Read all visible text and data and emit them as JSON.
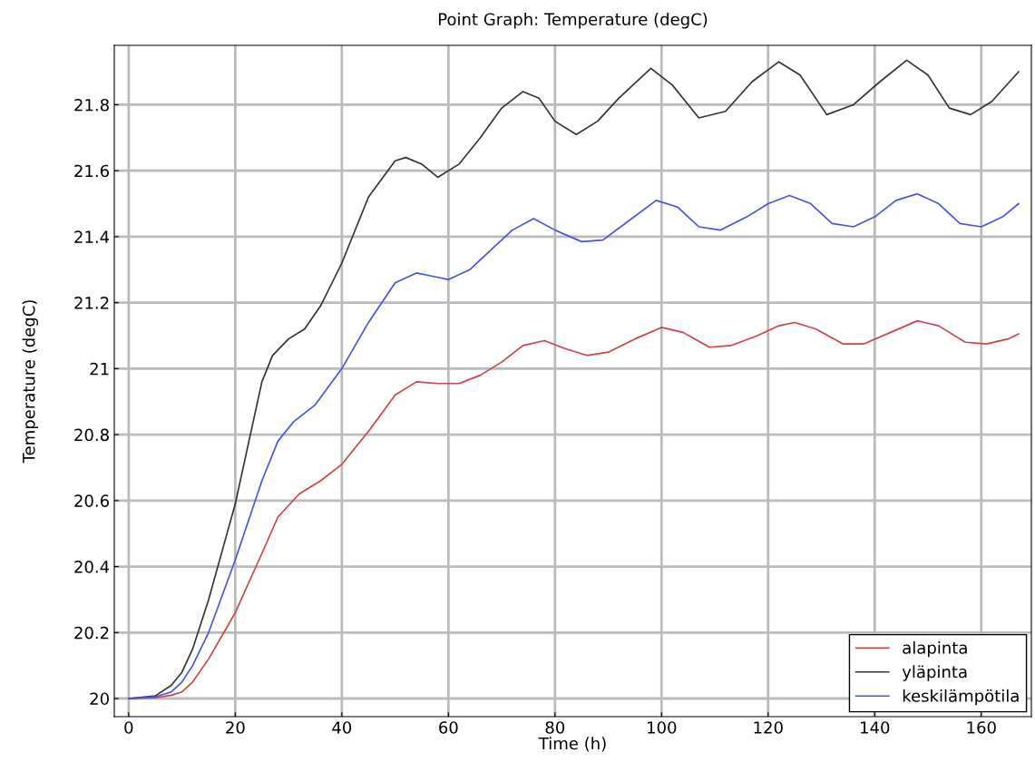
{
  "chart_data": {
    "type": "line",
    "title": "Point Graph: Temperature (degC)",
    "xlabel": "Time (h)",
    "ylabel": "Temperature (degC)",
    "xlim": [
      -2.7,
      169.4
    ],
    "ylim": [
      19.945,
      21.98
    ],
    "xticks": [
      0,
      20,
      40,
      60,
      80,
      100,
      120,
      140,
      160
    ],
    "yticks": [
      20,
      20.2,
      20.4,
      20.6,
      20.8,
      21,
      21.2,
      21.4,
      21.6,
      21.8
    ],
    "grid": true,
    "legend": "bottom right",
    "marker": "none",
    "line_style": "solid",
    "series": [
      {
        "name": "alapinta",
        "color": "#cc4444",
        "x": [
          0,
          5,
          8,
          10,
          12,
          15,
          20,
          25,
          28,
          32,
          36,
          40,
          45,
          50,
          54,
          58,
          62,
          66,
          70,
          74,
          78,
          82,
          86,
          90,
          95,
          100,
          104,
          109,
          113,
          118,
          122,
          125,
          129,
          134,
          138,
          143,
          148,
          152,
          157,
          161,
          165,
          167
        ],
        "values": [
          20,
          20.002,
          20.01,
          20.02,
          20.05,
          20.12,
          20.26,
          20.44,
          20.55,
          20.62,
          20.66,
          20.71,
          20.81,
          20.92,
          20.96,
          20.955,
          20.955,
          20.98,
          21.02,
          21.07,
          21.085,
          21.06,
          21.04,
          21.05,
          21.09,
          21.125,
          21.11,
          21.065,
          21.07,
          21.1,
          21.13,
          21.14,
          21.12,
          21.075,
          21.075,
          21.11,
          21.145,
          21.13,
          21.08,
          21.075,
          21.09,
          21.105
        ]
      },
      {
        "name": "yläpinta",
        "color": "#333333",
        "x": [
          0,
          5,
          8,
          10,
          12,
          15,
          20,
          25,
          27,
          30,
          33,
          36,
          40,
          45,
          50,
          52,
          55,
          58,
          62,
          66,
          70,
          74,
          77,
          80,
          84,
          88,
          92,
          98,
          102,
          107,
          112,
          117,
          122,
          126,
          131,
          136,
          141,
          146,
          150,
          154,
          158,
          162,
          167
        ],
        "values": [
          20,
          20.008,
          20.04,
          20.08,
          20.15,
          20.3,
          20.59,
          20.96,
          21.04,
          21.09,
          21.12,
          21.19,
          21.32,
          21.52,
          21.63,
          21.64,
          21.62,
          21.58,
          21.62,
          21.7,
          21.79,
          21.84,
          21.82,
          21.75,
          21.71,
          21.75,
          21.82,
          21.91,
          21.86,
          21.76,
          21.78,
          21.87,
          21.93,
          21.89,
          21.77,
          21.8,
          21.87,
          21.935,
          21.89,
          21.79,
          21.77,
          21.81,
          21.9
        ]
      },
      {
        "name": "keskilämpötila",
        "color": "#4455dd",
        "x": [
          0,
          5,
          8,
          10,
          12,
          15,
          20,
          25,
          28,
          31,
          35,
          40,
          45,
          50,
          54,
          57,
          60,
          64,
          68,
          72,
          76,
          80,
          85,
          89,
          94,
          99,
          103,
          107,
          111,
          116,
          120,
          124,
          128,
          132,
          136,
          140,
          144,
          148,
          152,
          156,
          160,
          164,
          167
        ],
        "values": [
          20,
          20.005,
          20.02,
          20.05,
          20.1,
          20.2,
          20.42,
          20.66,
          20.78,
          20.84,
          20.89,
          21.0,
          21.14,
          21.26,
          21.29,
          21.28,
          21.27,
          21.3,
          21.36,
          21.42,
          21.455,
          21.42,
          21.385,
          21.39,
          21.45,
          21.51,
          21.49,
          21.43,
          21.42,
          21.46,
          21.5,
          21.525,
          21.5,
          21.44,
          21.43,
          21.46,
          21.51,
          21.53,
          21.5,
          21.44,
          21.43,
          21.46,
          21.5
        ]
      }
    ]
  }
}
